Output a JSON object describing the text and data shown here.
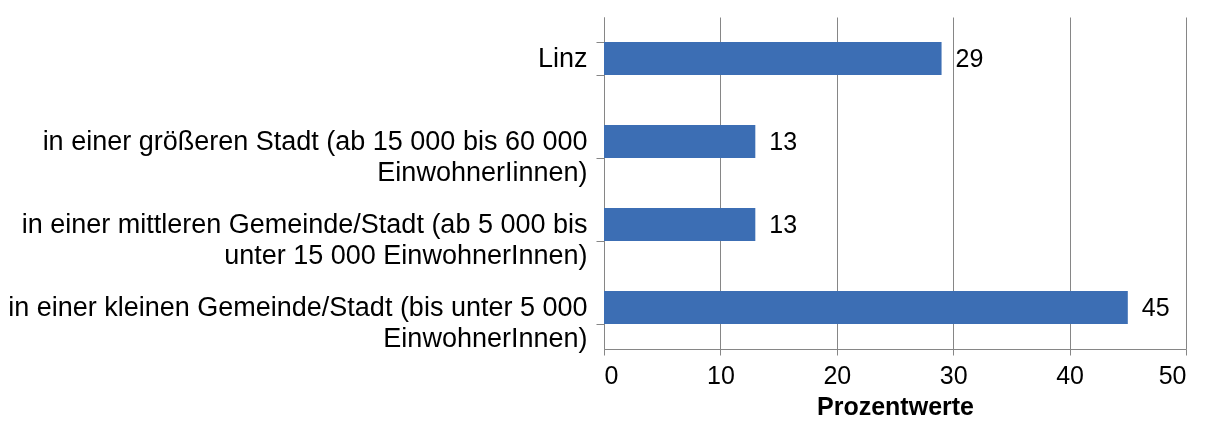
{
  "chart_data": {
    "type": "bar",
    "orientation": "horizontal",
    "categories": [
      "Linz",
      "in einer größeren Stadt (ab 15 000 bis 60 000 EinwohnerIinnen)",
      "in einer mittleren Gemeinde/Stadt (ab 5 000 bis unter 15 000 EinwohnerInnen)",
      "in einer kleinen Gemeinde/Stadt (bis unter 5 000 EinwohnerInnen)"
    ],
    "values": [
      29,
      13,
      13,
      45
    ],
    "color": "#3c6eb4",
    "data_labels": true,
    "xlabel": "Prozentwerte",
    "xlim": [
      0,
      50
    ],
    "xticks": [
      0,
      10,
      20,
      30,
      40,
      50
    ],
    "grid": "x"
  }
}
